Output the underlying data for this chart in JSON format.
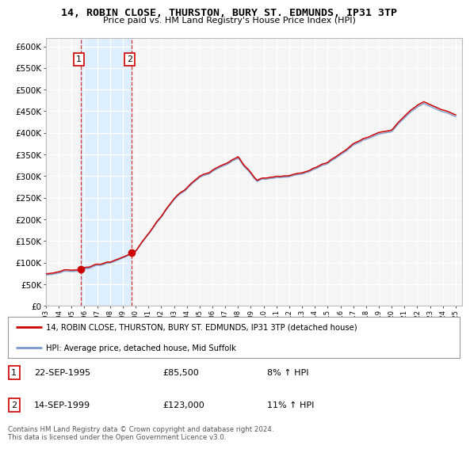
{
  "title": "14, ROBIN CLOSE, THURSTON, BURY ST. EDMUNDS, IP31 3TP",
  "subtitle": "Price paid vs. HM Land Registry's House Price Index (HPI)",
  "ylim": [
    0,
    620000
  ],
  "yticks": [
    0,
    50000,
    100000,
    150000,
    200000,
    250000,
    300000,
    350000,
    400000,
    450000,
    500000,
    550000,
    600000
  ],
  "ytick_labels": [
    "£0",
    "£50K",
    "£100K",
    "£150K",
    "£200K",
    "£250K",
    "£300K",
    "£350K",
    "£400K",
    "£450K",
    "£500K",
    "£550K",
    "£600K"
  ],
  "background_color": "#ffffff",
  "plot_bg_color": "#f5f5f5",
  "grid_color": "#ffffff",
  "legend_label_red": "14, ROBIN CLOSE, THURSTON, BURY ST. EDMUNDS, IP31 3TP (detached house)",
  "legend_label_blue": "HPI: Average price, detached house, Mid Suffolk",
  "purchase1_date": "22-SEP-1995",
  "purchase1_price": "£85,500",
  "purchase1_hpi": "8% ↑ HPI",
  "purchase2_date": "14-SEP-1999",
  "purchase2_price": "£123,000",
  "purchase2_hpi": "11% ↑ HPI",
  "footer": "Contains HM Land Registry data © Crown copyright and database right 2024.\nThis data is licensed under the Open Government Licence v3.0.",
  "red_color": "#cc0000",
  "blue_color": "#7799cc",
  "shade_color": "#ddeeff",
  "purchase1_year": 1995.72,
  "purchase1_value": 85500,
  "purchase2_year": 1999.7,
  "purchase2_value": 123000
}
